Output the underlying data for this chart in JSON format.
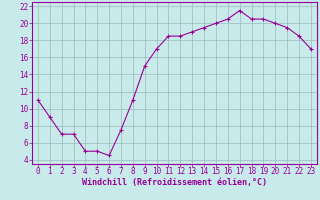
{
  "x": [
    0,
    1,
    2,
    3,
    4,
    5,
    6,
    7,
    8,
    9,
    10,
    11,
    12,
    13,
    14,
    15,
    16,
    17,
    18,
    19,
    20,
    21,
    22,
    23
  ],
  "y": [
    11,
    9,
    7,
    7,
    5,
    5,
    4.5,
    7.5,
    11,
    15,
    17,
    18.5,
    18.5,
    19,
    19.5,
    20,
    20.5,
    21.5,
    20.5,
    20.5,
    20,
    19.5,
    18.5,
    17
  ],
  "line_color": "#990099",
  "marker_color": "#990099",
  "background_color": "#c8eaea",
  "grid_color": "#99bbbb",
  "xlabel": "Windchill (Refroidissement éolien,°C)",
  "ylabel": "",
  "title": "",
  "xlim": [
    -0.5,
    23.5
  ],
  "ylim": [
    3.5,
    22.5
  ],
  "yticks": [
    4,
    6,
    8,
    10,
    12,
    14,
    16,
    18,
    20,
    22
  ],
  "xticks": [
    0,
    1,
    2,
    3,
    4,
    5,
    6,
    7,
    8,
    9,
    10,
    11,
    12,
    13,
    14,
    15,
    16,
    17,
    18,
    19,
    20,
    21,
    22,
    23
  ],
  "label_color": "#990099",
  "tick_font_size": 5.5,
  "xlabel_font_size": 6.0
}
